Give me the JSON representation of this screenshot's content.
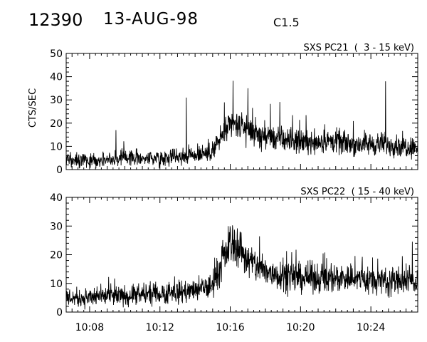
{
  "header": {
    "event_id": "12390",
    "date": "13-AUG-98",
    "flare_class": "C1.5"
  },
  "chart_data": [
    {
      "type": "line",
      "title": "SXS PC21  (  3 - 15 keV)",
      "ylabel": "CTS/SEC",
      "ylim": [
        0,
        50
      ],
      "yticks": [
        "0",
        "10",
        "20",
        "30",
        "40",
        "50"
      ],
      "xlim": [
        "10:06:40",
        "10:26:40"
      ],
      "xticks": [
        "10:08",
        "10:12",
        "10:16",
        "10:20",
        "10:24"
      ],
      "series": [
        {
          "x": [
            "10:06:40",
            "10:08:00",
            "10:09:00",
            "10:10:00",
            "10:11:00",
            "10:12:00",
            "10:13:00",
            "10:14:00",
            "10:15:00",
            "10:15:30",
            "10:16:00",
            "10:16:30",
            "10:17:00",
            "10:17:30",
            "10:18:00",
            "10:19:00",
            "10:20:00",
            "10:21:00",
            "10:22:00",
            "10:23:00",
            "10:24:00",
            "10:25:00",
            "10:26:00",
            "10:26:40"
          ],
          "values": [
            4,
            4,
            4.5,
            5,
            5,
            5,
            6,
            6.5,
            8,
            14,
            19,
            19,
            17,
            15,
            14,
            13,
            12,
            12,
            12,
            11,
            11,
            11,
            10,
            10
          ],
          "spikes": [
            [
              "10:09:30",
              17
            ],
            [
              "10:13:30",
              31
            ],
            [
              "10:17:00",
              35
            ],
            [
              "10:24:50",
              38
            ]
          ]
        }
      ]
    },
    {
      "type": "line",
      "title": "SXS PC22  ( 15 - 40 keV)",
      "ylabel": "",
      "ylim": [
        0,
        40
      ],
      "yticks": [
        "0",
        "10",
        "20",
        "30",
        "40"
      ],
      "xlim": [
        "10:06:40",
        "10:26:40"
      ],
      "xticks": [
        "10:08",
        "10:12",
        "10:16",
        "10:20",
        "10:24"
      ],
      "series": [
        {
          "x": [
            "10:06:40",
            "10:08:00",
            "10:09:00",
            "10:10:00",
            "10:11:00",
            "10:12:00",
            "10:13:00",
            "10:14:00",
            "10:15:00",
            "10:15:30",
            "10:16:00",
            "10:16:30",
            "10:17:00",
            "10:18:00",
            "10:19:00",
            "10:20:00",
            "10:21:00",
            "10:22:00",
            "10:23:00",
            "10:24:00",
            "10:25:00",
            "10:26:00",
            "10:26:40"
          ],
          "values": [
            5,
            5,
            5.5,
            5.5,
            6,
            6.5,
            7,
            7.5,
            9,
            17,
            24,
            23,
            18,
            14,
            13,
            12,
            12,
            12,
            12,
            11,
            11,
            11,
            11
          ],
          "spikes": [
            [
              "10:16:00",
              29
            ],
            [
              "10:19:00",
              19
            ],
            [
              "10:26:00",
              17
            ]
          ]
        }
      ]
    }
  ]
}
